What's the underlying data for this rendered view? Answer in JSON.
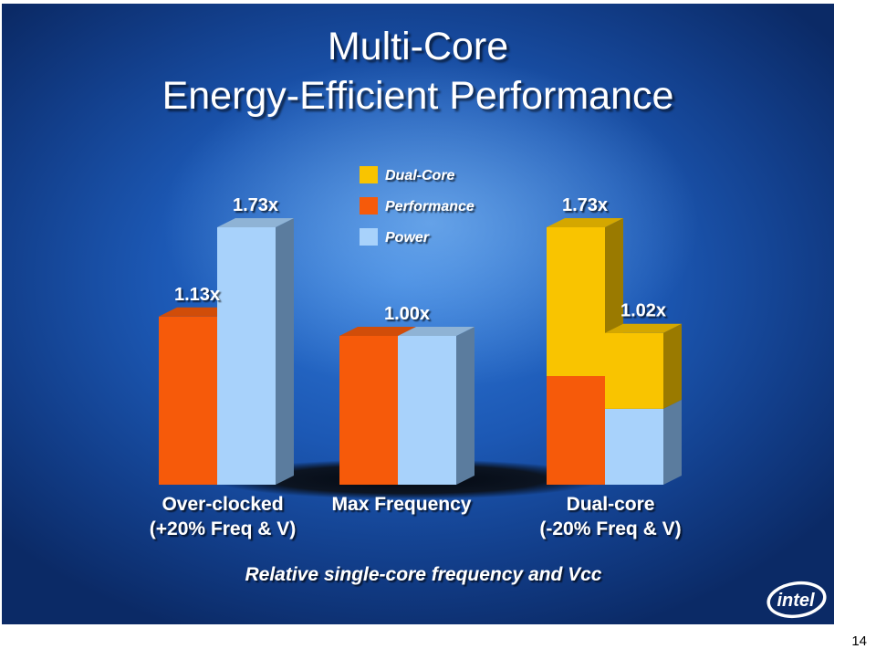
{
  "title_line1": "Multi-Core",
  "title_line2": "Energy-Efficient Performance",
  "caption": "Relative single-core frequency and Vcc",
  "page_number": "14",
  "brand_logo_text": "intel",
  "colors": {
    "dual_core": "#f9c400",
    "performance": "#f65a0a",
    "power": "#a8d2fb",
    "background": "#1c58b4"
  },
  "chart_data": {
    "type": "bar",
    "stacked_3d": true,
    "ylim": [
      0,
      2
    ],
    "legend": {
      "position": "top-center",
      "entries": [
        {
          "label": "Dual-Core",
          "color_key": "dual_core"
        },
        {
          "label": "Performance",
          "color_key": "performance"
        },
        {
          "label": "Power",
          "color_key": "power"
        }
      ]
    },
    "groups": [
      {
        "label_line1": "Over-clocked",
        "label_line2": "(+20% Freq & V)",
        "bars": [
          {
            "segments": [
              {
                "value": 1.13,
                "color_key": "performance"
              }
            ],
            "label": "1.13x"
          },
          {
            "segments": [
              {
                "value": 1.73,
                "color_key": "power"
              }
            ],
            "label": "1.73x"
          }
        ]
      },
      {
        "label_line1": "Max Frequency",
        "label_line2": "",
        "label": "1.00x",
        "bars": [
          {
            "segments": [
              {
                "value": 1.0,
                "color_key": "performance"
              }
            ],
            "label": ""
          },
          {
            "segments": [
              {
                "value": 1.0,
                "color_key": "power"
              }
            ],
            "label": ""
          }
        ]
      },
      {
        "label_line1": "Dual-core",
        "label_line2": "(-20% Freq & V)",
        "bars": [
          {
            "segments": [
              {
                "value": 0.73,
                "color_key": "performance"
              },
              {
                "value": 1.0,
                "color_key": "dual_core"
              }
            ],
            "label": "1.73x"
          },
          {
            "segments": [
              {
                "value": 0.51,
                "color_key": "power"
              },
              {
                "value": 0.51,
                "color_key": "dual_core"
              }
            ],
            "label": "1.02x"
          }
        ]
      }
    ]
  }
}
